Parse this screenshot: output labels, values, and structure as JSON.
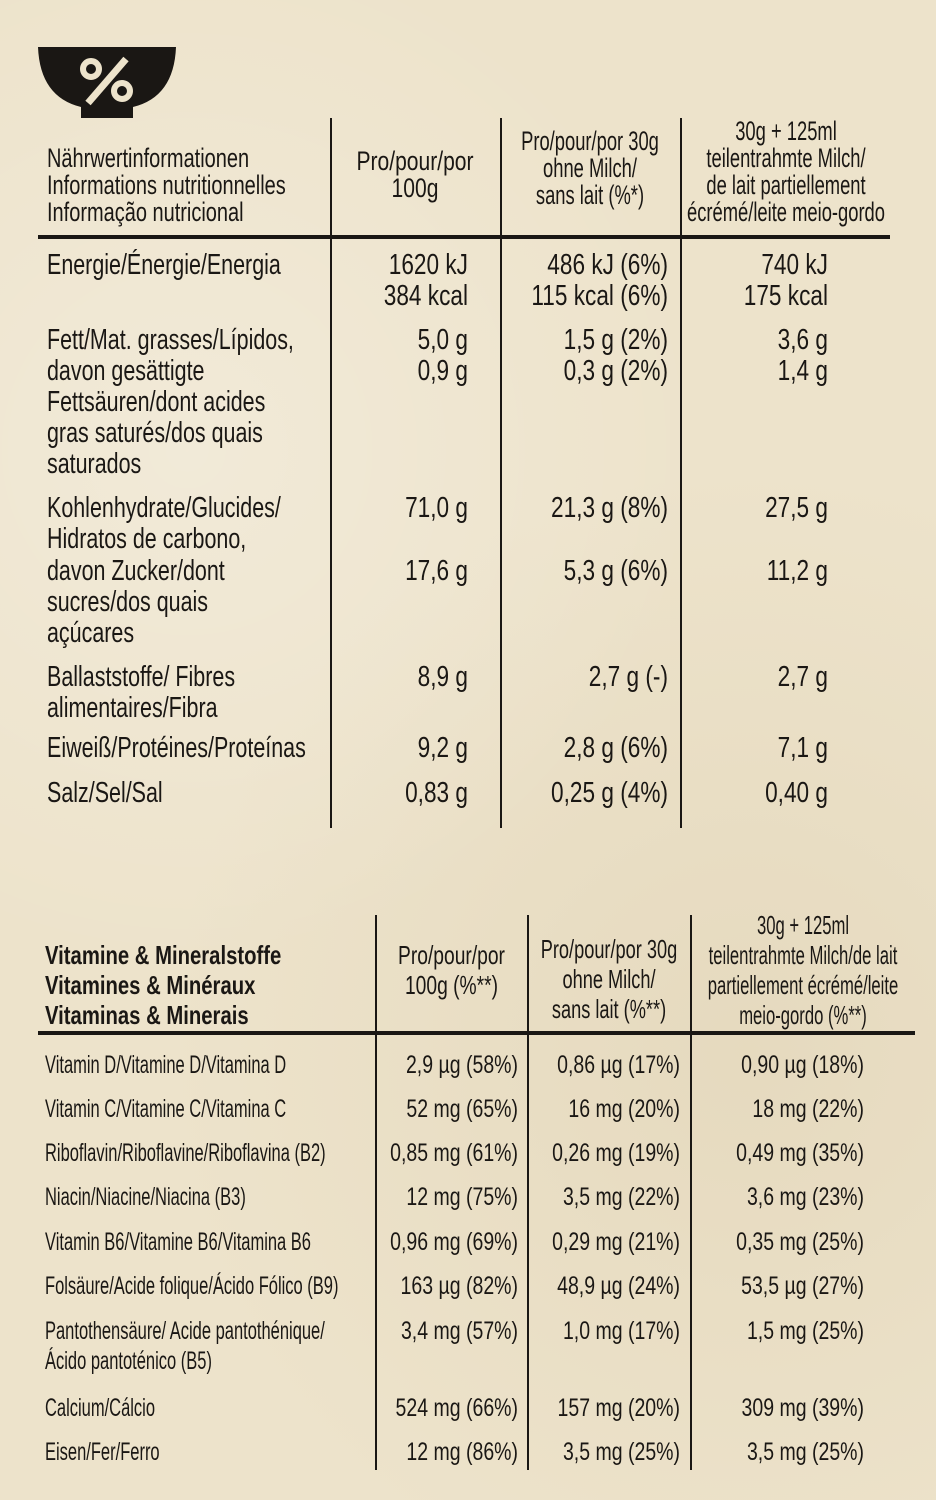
{
  "icon": "percent-bowl-icon",
  "nutrition": {
    "headers": [
      "Nährwertinformationen\nInformations nutritionnelles\nInformação nutricional",
      "Pro/pour/por\n100g",
      "Pro/pour/por 30g\nohne Milch/\nsans lait (%*)",
      "30g + 125ml\nteilentrahmte Milch/\nde lait partiellement\nécrémé/leite meio-gordo"
    ],
    "rows": [
      {
        "label": "Energie/Énergie/Energia",
        "v": [
          "1620 kJ\n384 kcal",
          "486 kJ (6%)\n115 kcal (6%)",
          "740 kJ\n175 kcal"
        ]
      },
      {
        "label": "Fett/Mat. grasses/Lípidos,",
        "v": [
          "5,0 g",
          "1,5 g (2%)",
          "3,6 g"
        ]
      },
      {
        "label": "davon gesättigte\nFettsäuren/dont acides\ngras saturés/dos quais\nsaturados",
        "v": [
          "0,9 g",
          "0,3 g (2%)",
          "1,4 g"
        ]
      },
      {
        "label": "Kohlenhydrate/Glucides/\nHidratos de carbono,",
        "v": [
          "71,0 g",
          "21,3 g (8%)",
          "27,5 g"
        ]
      },
      {
        "label": "davon Zucker/dont\nsucres/dos quais\naçúcares",
        "v": [
          "17,6 g",
          "5,3 g (6%)",
          "11,2 g"
        ]
      },
      {
        "label": "Ballaststoffe/ Fibres\nalimentaires/Fibra",
        "v": [
          "8,9 g",
          "2,7 g (-)",
          "2,7 g"
        ]
      },
      {
        "label": "Eiweiß/Protéines/Proteínas",
        "v": [
          "9,2 g",
          "2,8 g (6%)",
          "7,1 g"
        ]
      },
      {
        "label": "Salz/Sel/Sal",
        "v": [
          "0,83 g",
          "0,25 g (4%)",
          "0,40 g"
        ]
      }
    ]
  },
  "vitamins": {
    "headers": [
      "Vitamine & Mineralstoffe\nVitamines & Minéraux\nVitaminas & Minerais",
      "Pro/pour/por\n100g (%**)",
      "Pro/pour/por 30g\nohne Milch/\nsans lait (%**)",
      "30g + 125ml\nteilentrahmte Milch/de lait\npartiellement écrémé/leite\nmeio-gordo (%**)"
    ],
    "rows": [
      {
        "label": "Vitamin D/Vitamine D/Vitamina D",
        "v": [
          "2,9 µg (58%)",
          "0,86 µg (17%)",
          "0,90 µg (18%)"
        ]
      },
      {
        "label": "Vitamin C/Vitamine C/Vitamina C",
        "v": [
          "52 mg (65%)",
          "16 mg (20%)",
          "18 mg (22%)"
        ]
      },
      {
        "label": "Riboflavin/Riboflavine/Riboflavina (B2)",
        "v": [
          "0,85 mg (61%)",
          "0,26 mg (19%)",
          "0,49 mg (35%)"
        ]
      },
      {
        "label": "Niacin/Niacine/Niacina (B3)",
        "v": [
          "12 mg (75%)",
          "3,5 mg (22%)",
          "3,6 mg (23%)"
        ]
      },
      {
        "label": "Vitamin B6/Vitamine B6/Vitamina B6",
        "v": [
          "0,96 mg (69%)",
          "0,29 mg (21%)",
          "0,35 mg (25%)"
        ]
      },
      {
        "label": "Folsäure/Acide folique/Ácido Fólico (B9)",
        "v": [
          "163 µg (82%)",
          "48,9 µg (24%)",
          "53,5 µg (27%)"
        ]
      },
      {
        "label": "Pantothensäure/ Acide pantothénique/\nÁcido pantoténico (B5)",
        "v": [
          "3,4 mg (57%)",
          "1,0 mg (17%)",
          "1,5 mg (25%)"
        ]
      },
      {
        "label": "Calcium/Cálcio",
        "v": [
          "524 mg (66%)",
          "157 mg (20%)",
          "309 mg (39%)"
        ]
      },
      {
        "label": "Eisen/Fer/Ferro",
        "v": [
          "12 mg (86%)",
          "3,5 mg (25%)",
          "3,5 mg (25%)"
        ]
      }
    ]
  }
}
